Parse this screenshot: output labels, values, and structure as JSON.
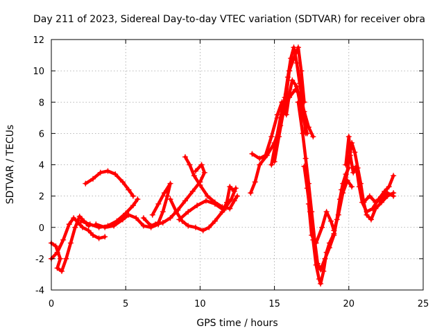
{
  "chart_data": {
    "type": "scatter",
    "title": "Day 211 of 2023, Sidereal Day-to-day VTEC variation (SDTVAR) for receiver obra",
    "xlabel": "GPS time / hours",
    "ylabel": "SDTVAR / TECUs",
    "xlim": [
      0,
      25
    ],
    "ylim": [
      -4,
      12
    ],
    "xticks": [
      "0",
      "5",
      "10",
      "15",
      "20",
      "25"
    ],
    "yticks": [
      "-4",
      "-2",
      "0",
      "2",
      "4",
      "6",
      "8",
      "10",
      "12"
    ],
    "grid": true,
    "marker": "+",
    "color": "#ff0000",
    "series": [
      {
        "points": [
          [
            0.0,
            -1.0
          ],
          [
            0.3,
            -1.2
          ],
          [
            0.6,
            -2.0
          ],
          [
            0.4,
            -2.6
          ],
          [
            0.7,
            -2.8
          ],
          [
            1.0,
            -2.0
          ],
          [
            1.3,
            -1.0
          ],
          [
            1.6,
            0.0
          ],
          [
            1.9,
            0.7
          ],
          [
            2.2,
            0.4
          ],
          [
            2.5,
            0.1
          ]
        ]
      },
      {
        "points": [
          [
            0.0,
            -2.0
          ],
          [
            0.4,
            -1.6
          ],
          [
            0.8,
            -0.8
          ],
          [
            1.2,
            0.2
          ],
          [
            1.5,
            0.6
          ],
          [
            1.8,
            0.3
          ],
          [
            2.1,
            0.0
          ],
          [
            2.5,
            -0.2
          ],
          [
            2.8,
            -0.5
          ],
          [
            3.2,
            -0.7
          ],
          [
            3.6,
            -0.6
          ]
        ]
      },
      {
        "points": [
          [
            2.3,
            2.8
          ],
          [
            2.8,
            3.1
          ],
          [
            3.3,
            3.5
          ],
          [
            3.8,
            3.6
          ],
          [
            4.3,
            3.4
          ],
          [
            4.8,
            2.9
          ],
          [
            5.2,
            2.4
          ],
          [
            5.5,
            2.0
          ]
        ]
      },
      {
        "points": [
          [
            2.0,
            0.4
          ],
          [
            2.6,
            0.2
          ],
          [
            3.2,
            0.0
          ],
          [
            3.8,
            0.1
          ],
          [
            4.4,
            0.4
          ],
          [
            5.0,
            0.9
          ],
          [
            5.5,
            1.4
          ],
          [
            5.8,
            1.8
          ]
        ]
      },
      {
        "points": [
          [
            3.0,
            0.2
          ],
          [
            3.6,
            0.0
          ],
          [
            4.2,
            0.1
          ],
          [
            4.8,
            0.5
          ],
          [
            5.2,
            0.8
          ],
          [
            5.7,
            0.6
          ],
          [
            6.2,
            0.1
          ],
          [
            6.7,
            0.0
          ],
          [
            7.2,
            0.2
          ]
        ]
      },
      {
        "points": [
          [
            6.2,
            0.6
          ],
          [
            6.7,
            0.1
          ],
          [
            7.2,
            0.3
          ],
          [
            7.5,
            1.0
          ],
          [
            7.8,
            2.0
          ],
          [
            8.0,
            2.8
          ],
          [
            7.6,
            2.2
          ],
          [
            7.2,
            1.5
          ],
          [
            6.8,
            0.8
          ]
        ]
      },
      {
        "points": [
          [
            7.0,
            0.2
          ],
          [
            7.5,
            0.3
          ],
          [
            8.0,
            0.6
          ],
          [
            8.5,
            1.1
          ],
          [
            9.0,
            1.7
          ],
          [
            9.5,
            2.3
          ],
          [
            10.0,
            2.9
          ],
          [
            10.3,
            3.5
          ],
          [
            10.1,
            4.0
          ],
          [
            9.7,
            3.6
          ]
        ]
      },
      {
        "points": [
          [
            9.0,
            4.5
          ],
          [
            9.3,
            4.0
          ],
          [
            9.6,
            3.3
          ],
          [
            10.0,
            2.7
          ],
          [
            10.5,
            2.0
          ],
          [
            11.0,
            1.6
          ],
          [
            11.5,
            1.3
          ],
          [
            12.0,
            1.2
          ],
          [
            12.3,
            1.7
          ],
          [
            12.5,
            2.0
          ]
        ]
      },
      {
        "points": [
          [
            8.0,
            1.8
          ],
          [
            8.4,
            1.0
          ],
          [
            8.8,
            0.4
          ],
          [
            9.2,
            0.1
          ],
          [
            9.7,
            0.0
          ],
          [
            10.2,
            -0.2
          ],
          [
            10.6,
            0.0
          ],
          [
            11.0,
            0.4
          ],
          [
            11.5,
            1.0
          ],
          [
            11.8,
            1.6
          ],
          [
            12.0,
            2.6
          ],
          [
            12.3,
            2.3
          ]
        ]
      },
      {
        "points": [
          [
            8.6,
            0.5
          ],
          [
            9.2,
            1.0
          ],
          [
            9.8,
            1.4
          ],
          [
            10.4,
            1.7
          ],
          [
            11.0,
            1.5
          ],
          [
            11.6,
            1.1
          ],
          [
            12.1,
            1.8
          ],
          [
            12.4,
            2.5
          ]
        ]
      },
      {
        "points": [
          [
            13.4,
            2.2
          ],
          [
            13.7,
            2.9
          ],
          [
            14.0,
            4.0
          ],
          [
            14.5,
            4.6
          ],
          [
            15.0,
            5.4
          ],
          [
            15.4,
            6.5
          ],
          [
            15.7,
            7.7
          ],
          [
            16.0,
            8.3
          ],
          [
            16.4,
            8.8
          ],
          [
            16.7,
            8.5
          ],
          [
            17.0,
            7.4
          ],
          [
            17.3,
            6.4
          ],
          [
            17.6,
            5.8
          ]
        ]
      },
      {
        "points": [
          [
            13.5,
            4.7
          ],
          [
            14.0,
            4.4
          ],
          [
            14.4,
            4.6
          ],
          [
            14.8,
            5.8
          ],
          [
            15.2,
            7.2
          ],
          [
            15.5,
            8.0
          ],
          [
            15.8,
            7.2
          ],
          [
            16.0,
            8.5
          ],
          [
            16.2,
            9.4
          ],
          [
            16.5,
            9.0
          ],
          [
            16.8,
            7.5
          ],
          [
            17.2,
            6.0
          ]
        ]
      },
      {
        "points": [
          [
            14.8,
            4.0
          ],
          [
            15.1,
            5.5
          ],
          [
            15.4,
            7.0
          ],
          [
            15.7,
            8.3
          ],
          [
            15.9,
            9.6
          ],
          [
            16.1,
            10.8
          ],
          [
            16.3,
            11.5
          ],
          [
            16.5,
            10.5
          ],
          [
            16.7,
            9.2
          ],
          [
            16.9,
            8.0
          ],
          [
            17.1,
            6.0
          ]
        ]
      },
      {
        "points": [
          [
            15.0,
            4.2
          ],
          [
            15.3,
            5.8
          ],
          [
            15.6,
            7.4
          ],
          [
            15.8,
            8.5
          ],
          [
            16.0,
            10.0
          ],
          [
            16.3,
            10.8
          ],
          [
            16.6,
            11.5
          ],
          [
            16.8,
            10.0
          ],
          [
            17.0,
            8.0
          ]
        ]
      },
      {
        "points": [
          [
            16.6,
            8.0
          ],
          [
            16.9,
            6.0
          ],
          [
            17.1,
            4.4
          ],
          [
            17.3,
            2.8
          ],
          [
            17.5,
            1.0
          ],
          [
            17.7,
            -0.8
          ],
          [
            17.9,
            -2.3
          ],
          [
            18.1,
            -2.7
          ],
          [
            18.4,
            -2.0
          ],
          [
            18.7,
            -1.3
          ],
          [
            19.0,
            -0.5
          ],
          [
            19.2,
            0.5
          ],
          [
            19.4,
            1.8
          ],
          [
            19.6,
            2.8
          ],
          [
            19.8,
            3.4
          ],
          [
            20.0,
            3.8
          ]
        ]
      },
      {
        "points": [
          [
            17.0,
            3.9
          ],
          [
            17.2,
            2.5
          ],
          [
            17.4,
            1.0
          ],
          [
            17.6,
            -0.8
          ],
          [
            17.8,
            -2.4
          ],
          [
            18.0,
            -3.3
          ],
          [
            18.1,
            -3.6
          ],
          [
            18.3,
            -2.8
          ],
          [
            18.5,
            -1.6
          ],
          [
            18.7,
            -1.0
          ],
          [
            19.0,
            -0.4
          ]
        ]
      },
      {
        "points": [
          [
            17.3,
            1.5
          ],
          [
            17.5,
            -0.5
          ],
          [
            17.8,
            -1.0
          ],
          [
            18.2,
            0.0
          ],
          [
            18.5,
            1.0
          ],
          [
            18.8,
            0.4
          ],
          [
            19.0,
            -0.2
          ],
          [
            19.3,
            0.8
          ],
          [
            19.6,
            2.2
          ],
          [
            19.9,
            3.0
          ],
          [
            20.2,
            2.6
          ]
        ]
      },
      {
        "points": [
          [
            19.5,
            2.4
          ],
          [
            19.8,
            3.0
          ],
          [
            20.0,
            4.2
          ],
          [
            20.2,
            5.4
          ],
          [
            20.4,
            4.8
          ],
          [
            20.6,
            3.8
          ],
          [
            20.8,
            2.8
          ],
          [
            21.0,
            1.6
          ],
          [
            21.2,
            0.8
          ],
          [
            21.5,
            0.5
          ],
          [
            21.8,
            1.2
          ],
          [
            22.2,
            1.6
          ],
          [
            22.6,
            2.0
          ],
          [
            23.0,
            2.2
          ]
        ]
      },
      {
        "points": [
          [
            19.8,
            4.0
          ],
          [
            20.0,
            5.8
          ],
          [
            20.1,
            4.6
          ],
          [
            20.3,
            3.5
          ],
          [
            20.5,
            3.9
          ],
          [
            20.7,
            2.6
          ],
          [
            20.9,
            1.6
          ],
          [
            21.2,
            1.0
          ],
          [
            21.6,
            1.2
          ],
          [
            22.0,
            1.8
          ],
          [
            22.4,
            2.3
          ],
          [
            22.7,
            2.6
          ],
          [
            23.0,
            3.3
          ]
        ]
      },
      {
        "points": [
          [
            21.0,
            1.6
          ],
          [
            21.4,
            2.0
          ],
          [
            21.8,
            1.6
          ],
          [
            22.2,
            1.8
          ],
          [
            22.6,
            2.2
          ],
          [
            23.0,
            2.0
          ]
        ]
      }
    ]
  }
}
